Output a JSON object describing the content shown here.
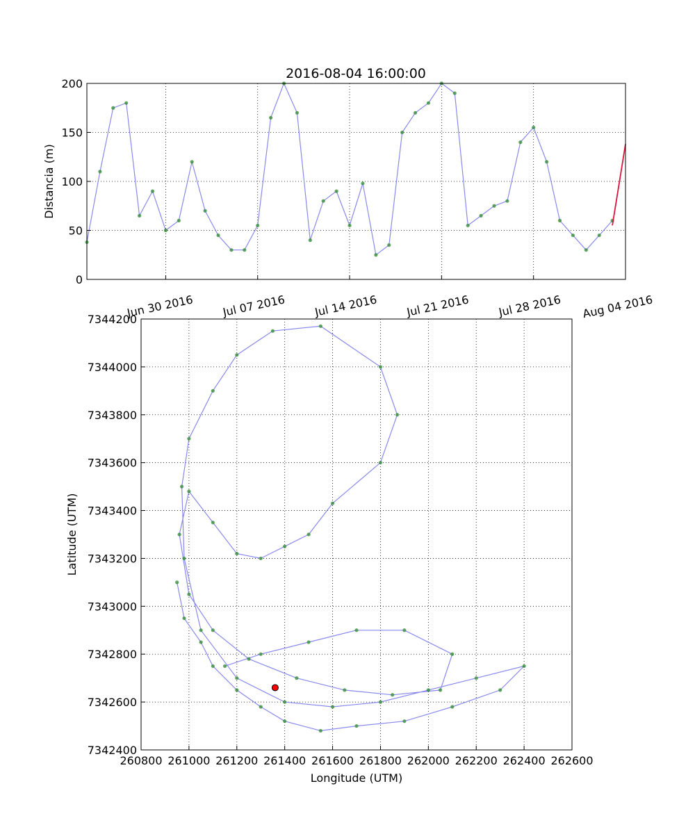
{
  "chart_data": [
    {
      "type": "line",
      "title": "2016-08-04 16:00:00",
      "xlabel": "",
      "ylabel": "Distancia (m)",
      "x_range": [
        "2016-06-24",
        "2016-08-04"
      ],
      "ylim": [
        0,
        200
      ],
      "grid": true,
      "x_tick_labels": [
        {
          "date": "2016-06-30",
          "label": "Jun 30 2016"
        },
        {
          "date": "2016-07-07",
          "label": "Jul 07 2016"
        },
        {
          "date": "2016-07-14",
          "label": "Jul 14 2016"
        },
        {
          "date": "2016-07-21",
          "label": "Jul 21 2016"
        },
        {
          "date": "2016-07-28",
          "label": "Jul 28 2016"
        },
        {
          "date": "2016-08-04",
          "label": "Aug 04 2016"
        }
      ],
      "y_ticks": [
        0,
        50,
        100,
        150,
        200
      ],
      "series": [
        {
          "color": "#8888ee",
          "marker_color": "#2e8b2e",
          "x": [
            "2016-06-24",
            "2016-06-25",
            "2016-06-26",
            "2016-06-27",
            "2016-06-28",
            "2016-06-29",
            "2016-06-30",
            "2016-07-01",
            "2016-07-02",
            "2016-07-03",
            "2016-07-04",
            "2016-07-05",
            "2016-07-06",
            "2016-07-07",
            "2016-07-08",
            "2016-07-09",
            "2016-07-10",
            "2016-07-11",
            "2016-07-12",
            "2016-07-13",
            "2016-07-14",
            "2016-07-15",
            "2016-07-16",
            "2016-07-17",
            "2016-07-18",
            "2016-07-19",
            "2016-07-20",
            "2016-07-21",
            "2016-07-22",
            "2016-07-23",
            "2016-07-24",
            "2016-07-25",
            "2016-07-26",
            "2016-07-27",
            "2016-07-28",
            "2016-07-29",
            "2016-07-30",
            "2016-07-31",
            "2016-08-01",
            "2016-08-02",
            "2016-08-03"
          ],
          "values": [
            38,
            110,
            175,
            180,
            65,
            90,
            50,
            60,
            120,
            70,
            45,
            30,
            30,
            55,
            165,
            200,
            170,
            40,
            80,
            90,
            55,
            98,
            25,
            35,
            150,
            170,
            180,
            200,
            190,
            55,
            65,
            75,
            80,
            140,
            155,
            120,
            60,
            45,
            30,
            45,
            60
          ]
        },
        {
          "color": "#dc143c",
          "x": [
            "2016-08-03",
            "2016-08-04"
          ],
          "values": [
            55,
            138
          ]
        }
      ]
    },
    {
      "type": "scatter",
      "title": "",
      "xlabel": "Longitude (UTM)",
      "ylabel": "Latitude (UTM)",
      "xlim": [
        260800,
        262600
      ],
      "ylim": [
        7342400,
        7344200
      ],
      "x_ticks": [
        260800,
        261000,
        261200,
        261400,
        261600,
        261800,
        262000,
        262200,
        262400,
        262600
      ],
      "y_ticks": [
        7342400,
        7342600,
        7342800,
        7343000,
        7343200,
        7343400,
        7343600,
        7343800,
        7344000,
        7344200
      ],
      "grid": true,
      "series": [
        {
          "color": "#8888ee",
          "marker_color": "#2e8b2e",
          "x": [
            260950,
            260980,
            261050,
            261100,
            261200,
            261300,
            261400,
            261550,
            261700,
            261900,
            262100,
            262300,
            262400,
            262200,
            262000,
            261800,
            261600,
            261400,
            261200,
            261050,
            260980,
            260970,
            261000,
            261100,
            261200,
            261350,
            261550,
            261800,
            261870,
            261800,
            261600,
            261500,
            261400,
            261300,
            261200,
            261100,
            261000,
            260960,
            261000,
            261100,
            261250,
            261450,
            261650,
            261850,
            262050,
            262100,
            261900,
            261700,
            261500,
            261300,
            261150
          ],
          "y": [
            7343100,
            7342950,
            7342850,
            7342750,
            7342650,
            7342580,
            7342520,
            7342480,
            7342500,
            7342520,
            7342580,
            7342650,
            7342750,
            7342700,
            7342650,
            7342600,
            7342580,
            7342600,
            7342700,
            7342900,
            7343200,
            7343500,
            7343700,
            7343900,
            7344050,
            7344150,
            7344170,
            7344000,
            7343800,
            7343600,
            7343430,
            7343300,
            7343250,
            7343200,
            7343220,
            7343350,
            7343480,
            7343300,
            7343050,
            7342900,
            7342780,
            7342700,
            7342650,
            7342630,
            7342650,
            7342800,
            7342900,
            7342900,
            7342850,
            7342800,
            7342750
          ]
        }
      ],
      "current_point": {
        "x": 261360,
        "y": 7342660,
        "color": "#ff0000"
      }
    }
  ]
}
